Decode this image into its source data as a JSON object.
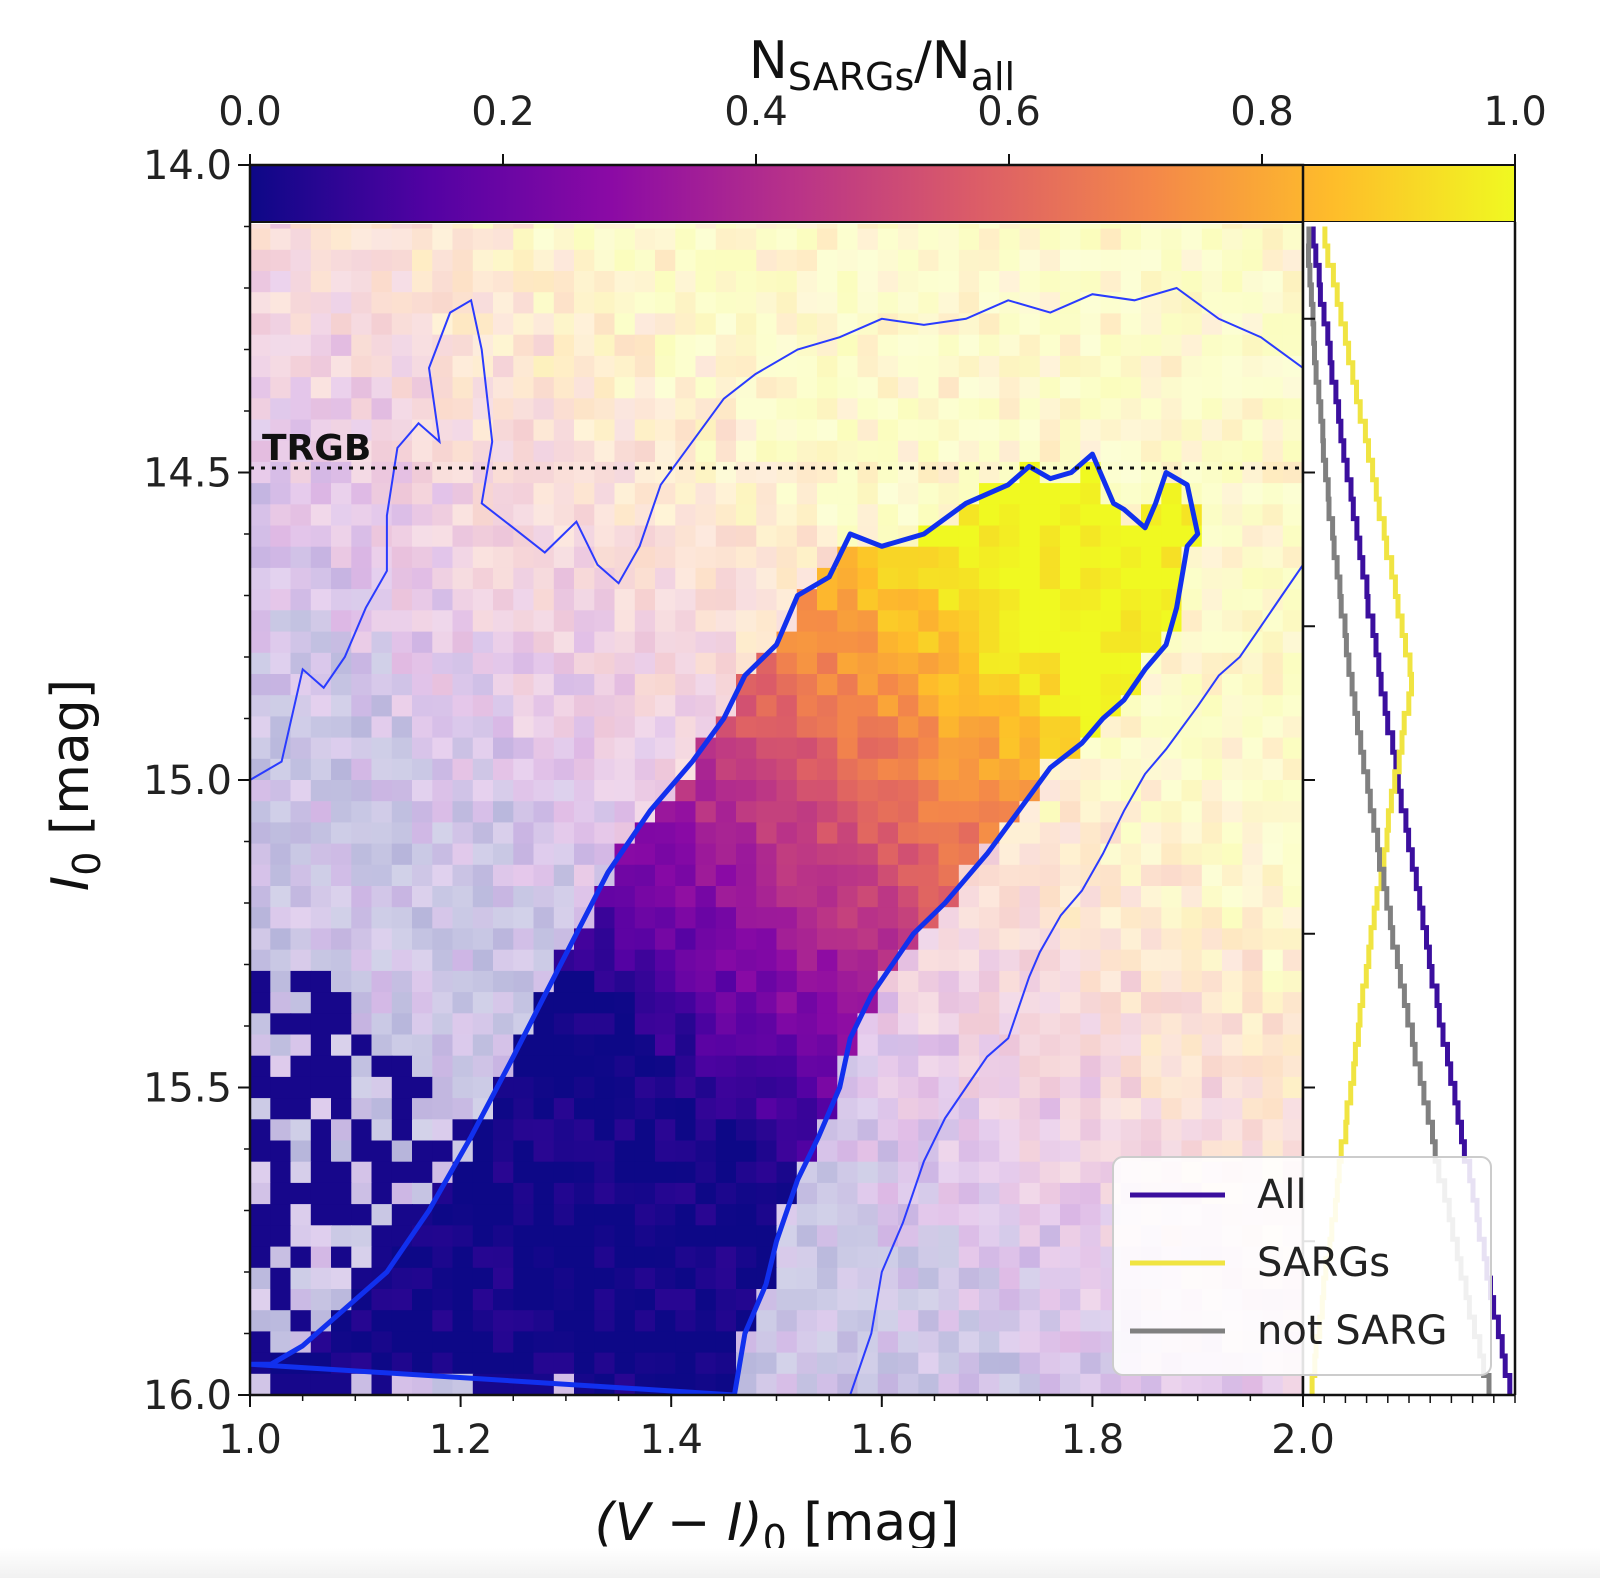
{
  "chart_data": {
    "type": "heatmap",
    "colorbar": {
      "label_main": "N",
      "label_sub1": "SARGs",
      "label_mid": "/N",
      "label_sub2": "all",
      "ticks": [
        "0.0",
        "0.2",
        "0.4",
        "0.6",
        "0.8",
        "1.0"
      ],
      "range": [
        0.0,
        1.0
      ],
      "colormap": "plasma",
      "stops": [
        "#0d0887",
        "#5302a3",
        "#8b0aa5",
        "#b83289",
        "#db5c68",
        "#f48849",
        "#febd2a",
        "#f0f921"
      ]
    },
    "main_panel": {
      "x_label_main": "(V − I)",
      "x_label_sub": "0",
      "x_label_unit": " [mag]",
      "y_label_main": "I",
      "y_label_sub": "0",
      "y_label_unit": " [mag]",
      "xlim": [
        1.0,
        2.0
      ],
      "ylim": [
        16.0,
        14.0
      ],
      "x_ticks": [
        "1.0",
        "1.2",
        "1.4",
        "1.6",
        "1.8",
        "2.0"
      ],
      "y_ticks": [
        "14.0",
        "14.5",
        "15.0",
        "15.5",
        "16.0"
      ],
      "trgb": {
        "label": "TRGB",
        "I0": 14.5
      },
      "contours": {
        "outer_color": "#2a3bff",
        "inner_color": "#1130ee",
        "outer_upper": [
          [
            1.0,
            15.0
          ],
          [
            1.03,
            14.97
          ],
          [
            1.05,
            14.82
          ],
          [
            1.07,
            14.85
          ],
          [
            1.09,
            14.8
          ],
          [
            1.11,
            14.72
          ],
          [
            1.13,
            14.66
          ],
          [
            1.13,
            14.57
          ],
          [
            1.14,
            14.46
          ],
          [
            1.16,
            14.42
          ],
          [
            1.18,
            14.45
          ],
          [
            1.17,
            14.33
          ],
          [
            1.19,
            14.24
          ],
          [
            1.21,
            14.22
          ],
          [
            1.22,
            14.3
          ],
          [
            1.23,
            14.45
          ],
          [
            1.22,
            14.55
          ],
          [
            1.25,
            14.59
          ],
          [
            1.28,
            14.63
          ],
          [
            1.31,
            14.58
          ],
          [
            1.33,
            14.65
          ],
          [
            1.35,
            14.68
          ],
          [
            1.37,
            14.62
          ],
          [
            1.39,
            14.52
          ],
          [
            1.42,
            14.45
          ],
          [
            1.45,
            14.38
          ],
          [
            1.48,
            14.34
          ],
          [
            1.52,
            14.3
          ],
          [
            1.56,
            14.28
          ],
          [
            1.6,
            14.25
          ],
          [
            1.64,
            14.26
          ],
          [
            1.68,
            14.25
          ],
          [
            1.72,
            14.22
          ],
          [
            1.76,
            14.24
          ],
          [
            1.8,
            14.21
          ],
          [
            1.84,
            14.22
          ],
          [
            1.88,
            14.2
          ],
          [
            1.92,
            14.25
          ],
          [
            1.96,
            14.28
          ],
          [
            2.0,
            14.33
          ]
        ],
        "outer_lower": [
          [
            1.57,
            16.0
          ],
          [
            1.59,
            15.9
          ],
          [
            1.6,
            15.8
          ],
          [
            1.62,
            15.72
          ],
          [
            1.64,
            15.62
          ],
          [
            1.66,
            15.55
          ],
          [
            1.68,
            15.5
          ],
          [
            1.7,
            15.45
          ],
          [
            1.72,
            15.42
          ],
          [
            1.73,
            15.37
          ],
          [
            1.74,
            15.32
          ],
          [
            1.75,
            15.28
          ],
          [
            1.77,
            15.22
          ],
          [
            1.79,
            15.18
          ],
          [
            1.81,
            15.12
          ],
          [
            1.83,
            15.05
          ],
          [
            1.85,
            14.99
          ],
          [
            1.87,
            14.95
          ],
          [
            1.9,
            14.88
          ],
          [
            1.92,
            14.83
          ],
          [
            1.94,
            14.8
          ],
          [
            1.96,
            14.75
          ],
          [
            1.98,
            14.7
          ],
          [
            2.0,
            14.65
          ]
        ],
        "inner_main": [
          [
            1.46,
            16.0
          ],
          [
            1.47,
            15.9
          ],
          [
            1.49,
            15.82
          ],
          [
            1.5,
            15.75
          ],
          [
            1.52,
            15.65
          ],
          [
            1.54,
            15.58
          ],
          [
            1.56,
            15.5
          ],
          [
            1.57,
            15.42
          ],
          [
            1.59,
            15.35
          ],
          [
            1.61,
            15.3
          ],
          [
            1.63,
            15.25
          ],
          [
            1.66,
            15.2
          ],
          [
            1.7,
            15.12
          ],
          [
            1.73,
            15.05
          ],
          [
            1.76,
            14.98
          ],
          [
            1.79,
            14.94
          ],
          [
            1.81,
            14.9
          ],
          [
            1.83,
            14.87
          ],
          [
            1.85,
            14.82
          ],
          [
            1.87,
            14.78
          ],
          [
            1.88,
            14.72
          ],
          [
            1.89,
            14.62
          ],
          [
            1.9,
            14.6
          ],
          [
            1.89,
            14.52
          ],
          [
            1.87,
            14.5
          ],
          [
            1.86,
            14.55
          ],
          [
            1.85,
            14.59
          ],
          [
            1.83,
            14.56
          ],
          [
            1.82,
            14.55
          ],
          [
            1.8,
            14.47
          ],
          [
            1.78,
            14.5
          ],
          [
            1.76,
            14.51
          ],
          [
            1.74,
            14.49
          ],
          [
            1.72,
            14.52
          ],
          [
            1.68,
            14.55
          ],
          [
            1.64,
            14.6
          ],
          [
            1.6,
            14.62
          ],
          [
            1.57,
            14.6
          ],
          [
            1.55,
            14.67
          ],
          [
            1.52,
            14.7
          ],
          [
            1.5,
            14.78
          ],
          [
            1.47,
            14.83
          ],
          [
            1.45,
            14.9
          ],
          [
            1.42,
            14.97
          ],
          [
            1.38,
            15.05
          ],
          [
            1.34,
            15.15
          ],
          [
            1.31,
            15.25
          ],
          [
            1.28,
            15.35
          ],
          [
            1.25,
            15.45
          ],
          [
            1.21,
            15.58
          ],
          [
            1.17,
            15.7
          ],
          [
            1.13,
            15.8
          ],
          [
            1.09,
            15.86
          ],
          [
            1.05,
            15.92
          ],
          [
            1.02,
            15.95
          ],
          [
            1.0,
            15.95
          ]
        ]
      }
    },
    "side_panel": {
      "histograms": [
        {
          "name": "All",
          "color": "#3b0f9e"
        },
        {
          "name": "SARGs",
          "color": "#f0e442"
        },
        {
          "name": "not SARG",
          "color": "#808080"
        }
      ],
      "legend_position": "lower-right"
    }
  }
}
